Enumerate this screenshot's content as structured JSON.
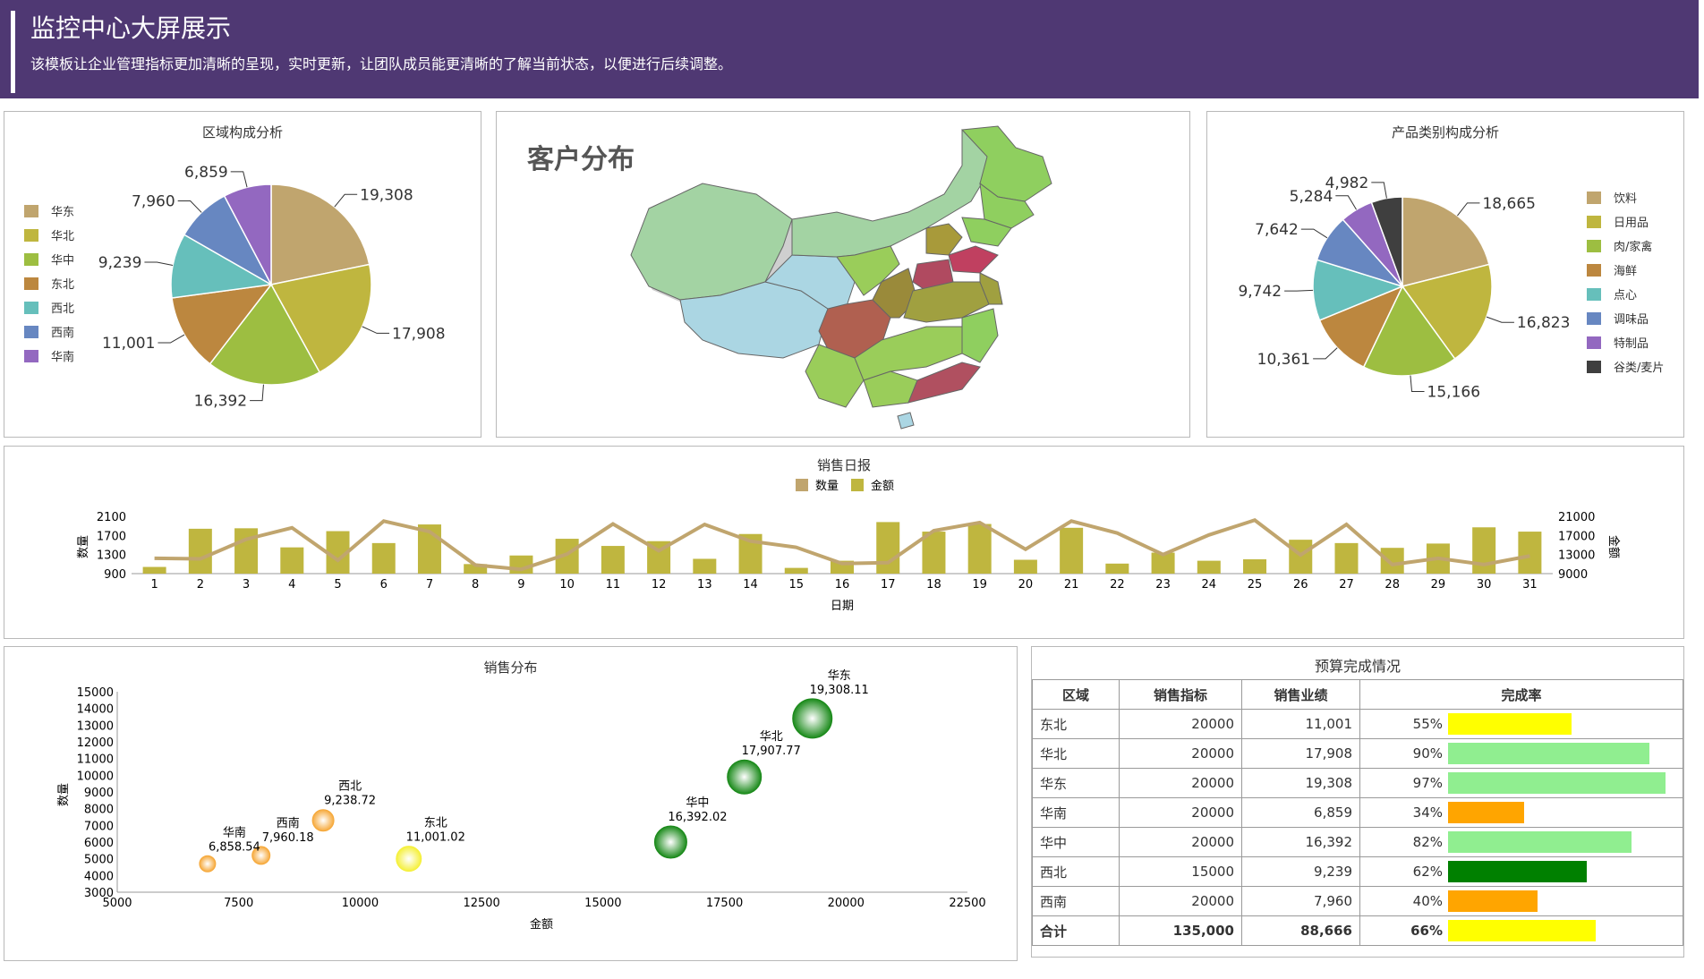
{
  "header": {
    "title": "监控中心大屏展示",
    "subtitle": "该模板让企业管理指标更加清晰的呈现，实时更新，让团队成员能更清晰的了解当前状态，以便进行后续调整。"
  },
  "region_pie": {
    "title": "区域构成分析",
    "chart_data": {
      "type": "pie",
      "slices": [
        {
          "name": "华东",
          "value": 19308,
          "label": "19,308",
          "color": "#c0a56e"
        },
        {
          "name": "华北",
          "value": 17908,
          "label": "17,908",
          "color": "#bfb63f"
        },
        {
          "name": "华中",
          "value": 16392,
          "label": "16,392",
          "color": "#9dbe41"
        },
        {
          "name": "东北",
          "value": 11001,
          "label": "11,001",
          "color": "#bc873f"
        },
        {
          "name": "西北",
          "value": 9239,
          "label": "9,239",
          "color": "#66bfbb"
        },
        {
          "name": "西南",
          "value": 7960,
          "label": "7,960",
          "color": "#6787c1"
        },
        {
          "name": "华南",
          "value": 6859,
          "label": "6,859",
          "color": "#9368c0"
        }
      ]
    }
  },
  "map": {
    "title": "客户分布"
  },
  "product_pie": {
    "title": "产品类别构成分析",
    "chart_data": {
      "type": "pie",
      "slices": [
        {
          "name": "饮料",
          "value": 18665,
          "label": "18,665",
          "color": "#c0a56e"
        },
        {
          "name": "日用品",
          "value": 16823,
          "label": "16,823",
          "color": "#bfb63f"
        },
        {
          "name": "肉/家禽",
          "value": 15166,
          "label": "15,166",
          "color": "#9dbe41"
        },
        {
          "name": "海鲜",
          "value": 10361,
          "label": "10,361",
          "color": "#bc873f"
        },
        {
          "name": "点心",
          "value": 9742,
          "label": "9,742",
          "color": "#66bfbb"
        },
        {
          "name": "调味品",
          "value": 7642,
          "label": "7,642",
          "color": "#6787c1"
        },
        {
          "name": "特制品",
          "value": 5284,
          "label": "5,284",
          "color": "#9368c0"
        },
        {
          "name": "谷类/麦片",
          "value": 4982,
          "label": "4,982",
          "color": "#3f3f3f"
        }
      ]
    }
  },
  "daily": {
    "title": "销售日报",
    "legend_qty": "数量",
    "legend_amt": "金额",
    "chart_data": {
      "type": "bar",
      "xlabel": "日期",
      "ylabel_left": "数量",
      "ylabel_right": "金额",
      "left_ticks": [
        "2100",
        "1700",
        "1300",
        "900"
      ],
      "right_ticks": [
        "21000",
        "17000",
        "13000",
        "9000"
      ],
      "left_range": [
        900,
        2100
      ],
      "right_range": [
        9000,
        21000
      ],
      "categories": [
        "1",
        "2",
        "3",
        "4",
        "5",
        "6",
        "7",
        "8",
        "9",
        "10",
        "11",
        "12",
        "13",
        "14",
        "15",
        "16",
        "17",
        "18",
        "19",
        "20",
        "21",
        "22",
        "23",
        "24",
        "25",
        "26",
        "27",
        "28",
        "29",
        "30",
        "31"
      ],
      "series": [
        {
          "name": "金额",
          "values": [
            10400,
            18400,
            18500,
            14500,
            17900,
            15400,
            19300,
            11000,
            12800,
            16300,
            14800,
            15800,
            12100,
            17300,
            10200,
            11700,
            19800,
            17800,
            19400,
            11900,
            18600,
            11100,
            13400,
            11700,
            12000,
            16100,
            15400,
            14400,
            15300,
            18700,
            17800
          ],
          "color": "#bfb63f"
        },
        {
          "name": "数量",
          "values": [
            1220,
            1210,
            1620,
            1860,
            1180,
            2000,
            1780,
            1080,
            990,
            1310,
            1940,
            1380,
            1930,
            1580,
            1450,
            1110,
            1130,
            1800,
            1970,
            1410,
            2000,
            1750,
            1300,
            1710,
            2020,
            1290,
            1930,
            1090,
            1220,
            1090,
            1270
          ],
          "color": "#c0a56e"
        }
      ]
    }
  },
  "scatter": {
    "title": "销售分布",
    "chart_data": {
      "type": "scatter",
      "xlabel": "金额",
      "ylabel": "数量",
      "xlim": [
        5000,
        22500
      ],
      "ylim": [
        3000,
        15000
      ],
      "x_ticks": [
        "5000",
        "7500",
        "10000",
        "12500",
        "15000",
        "17500",
        "20000",
        "22500"
      ],
      "y_ticks": [
        "15000",
        "14000",
        "13000",
        "12000",
        "11000",
        "10000",
        "9000",
        "8000",
        "7000",
        "6000",
        "5000",
        "4000",
        "3000"
      ],
      "points": [
        {
          "name": "华东",
          "x": 19308.11,
          "y": 13400,
          "label": "19,308.11",
          "color": "#1a8a1a",
          "r": 22
        },
        {
          "name": "华北",
          "x": 17907.77,
          "y": 9900,
          "label": "17,907.77",
          "color": "#1a8a1a",
          "r": 19
        },
        {
          "name": "华中",
          "x": 16392.02,
          "y": 6000,
          "label": "16,392.02",
          "color": "#1a8a1a",
          "r": 18
        },
        {
          "name": "东北",
          "x": 11001.02,
          "y": 5000,
          "label": "11,001.02",
          "color": "#f5f03a",
          "r": 14
        },
        {
          "name": "西北",
          "x": 9238.72,
          "y": 7300,
          "label": "9,238.72",
          "color": "#f6a93b",
          "r": 12
        },
        {
          "name": "西南",
          "x": 7960.18,
          "y": 5200,
          "label": "7,960.18",
          "color": "#f6a93b",
          "r": 10
        },
        {
          "name": "华南",
          "x": 6858.54,
          "y": 4700,
          "label": "6,858.54",
          "color": "#f6a93b",
          "r": 9
        }
      ]
    }
  },
  "budget": {
    "title": "预算完成情况",
    "headers": [
      "区域",
      "销售指标",
      "销售业绩",
      "完成率"
    ],
    "rows": [
      {
        "region": "东北",
        "target": "20000",
        "actual": "11,001",
        "rate": "55%",
        "pct": 55,
        "color": "#ffff00"
      },
      {
        "region": "华北",
        "target": "20000",
        "actual": "17,908",
        "rate": "90%",
        "pct": 90,
        "color": "#90ee90"
      },
      {
        "region": "华东",
        "target": "20000",
        "actual": "19,308",
        "rate": "97%",
        "pct": 97,
        "color": "#90ee90"
      },
      {
        "region": "华南",
        "target": "20000",
        "actual": "6,859",
        "rate": "34%",
        "pct": 34,
        "color": "#ffa500"
      },
      {
        "region": "华中",
        "target": "20000",
        "actual": "16,392",
        "rate": "82%",
        "pct": 82,
        "color": "#90ee90"
      },
      {
        "region": "西北",
        "target": "15000",
        "actual": "9,239",
        "rate": "62%",
        "pct": 62,
        "color": "#008000"
      },
      {
        "region": "西南",
        "target": "20000",
        "actual": "7,960",
        "rate": "40%",
        "pct": 40,
        "color": "#ffa500"
      }
    ],
    "total": {
      "region": "合计",
      "target": "135,000",
      "actual": "88,666",
      "rate": "66%",
      "pct": 66,
      "color": "#ffff00"
    }
  }
}
